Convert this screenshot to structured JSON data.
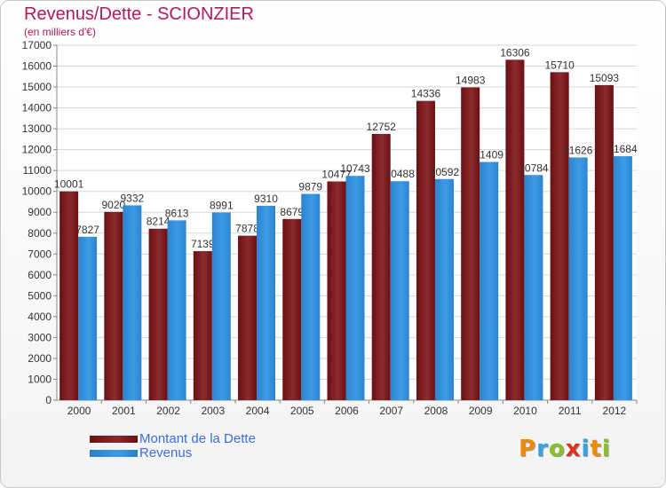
{
  "colors": {
    "debt": "#6b0f12",
    "revenue": "#3d9be6",
    "title": "#b01a5a",
    "legend_text": "#3b6fd8"
  },
  "logo": {
    "letters": [
      "P",
      "r",
      "o",
      "x",
      "i",
      "t",
      "i"
    ],
    "colors": [
      "#f08a00",
      "#3aa0e0",
      "#8bbf2a",
      "#e03020",
      "#3aa0e0",
      "#f08a00",
      "#8bbf2a"
    ]
  },
  "chart_data": {
    "type": "bar",
    "title": "Revenus/Dette - SCIONZIER",
    "subtitle": "(en milliers d'€)",
    "xlabel": "",
    "ylabel": "",
    "ylim": [
      0,
      17000
    ],
    "yticks": [
      0,
      1000,
      2000,
      3000,
      4000,
      5000,
      6000,
      7000,
      8000,
      9000,
      10000,
      11000,
      12000,
      13000,
      14000,
      15000,
      16000,
      17000
    ],
    "grid": true,
    "legend_position": "bottom-left",
    "categories": [
      "2000",
      "2001",
      "2002",
      "2003",
      "2004",
      "2005",
      "2006",
      "2007",
      "2008",
      "2009",
      "2010",
      "2011",
      "2012"
    ],
    "series": [
      {
        "name": "Montant de la Dette",
        "values": [
          10001,
          9020,
          8214,
          7139,
          7878,
          8679,
          10477,
          12752,
          14336,
          14983,
          16306,
          15710,
          15093
        ]
      },
      {
        "name": "Revenus",
        "values": [
          7827,
          9332,
          8613,
          8991,
          9310,
          9879,
          10743,
          10488,
          10592,
          11409,
          10784,
          11626,
          11684
        ]
      }
    ]
  }
}
